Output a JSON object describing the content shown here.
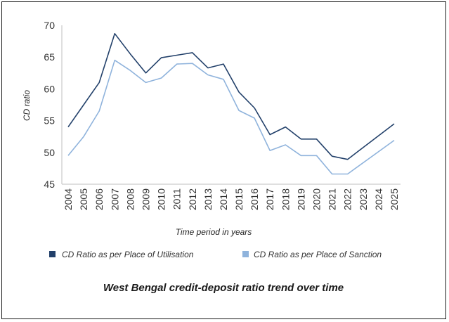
{
  "chart_data": {
    "type": "line",
    "title": "West Bengal credit-deposit ratio trend over time",
    "xlabel": "Time period in years",
    "ylabel": "CD ratio",
    "ylim": [
      45,
      70
    ],
    "yticks": [
      "70",
      "65",
      "60",
      "55",
      "50",
      "45"
    ],
    "categories": [
      "2004",
      "2005",
      "2006",
      "2007",
      "2008",
      "2009",
      "2010",
      "2011",
      "2012",
      "2013",
      "2014",
      "2015",
      "2016",
      "2017",
      "2018",
      "2019",
      "2020",
      "2021",
      "2022",
      "2023",
      "2024",
      "2025"
    ],
    "series": [
      {
        "name": "CD Ratio as per Place of Utilisation",
        "color": "#22406a",
        "values": [
          54.0,
          57.5,
          61.0,
          68.7,
          65.5,
          62.5,
          64.9,
          65.3,
          65.7,
          63.3,
          63.9,
          59.5,
          57.0,
          52.8,
          54.0,
          52.1,
          52.1,
          49.4,
          48.9,
          null,
          null,
          54.5
        ]
      },
      {
        "name": "CD Ratio as per Place of Sanction",
        "color": "#8fb3dc",
        "values": [
          49.5,
          52.5,
          56.5,
          64.5,
          62.9,
          61.0,
          61.7,
          63.9,
          64.0,
          62.2,
          61.5,
          56.6,
          55.4,
          50.3,
          51.2,
          49.5,
          49.5,
          46.6,
          46.6,
          null,
          null,
          51.9
        ]
      }
    ],
    "legend_position": "bottom"
  }
}
